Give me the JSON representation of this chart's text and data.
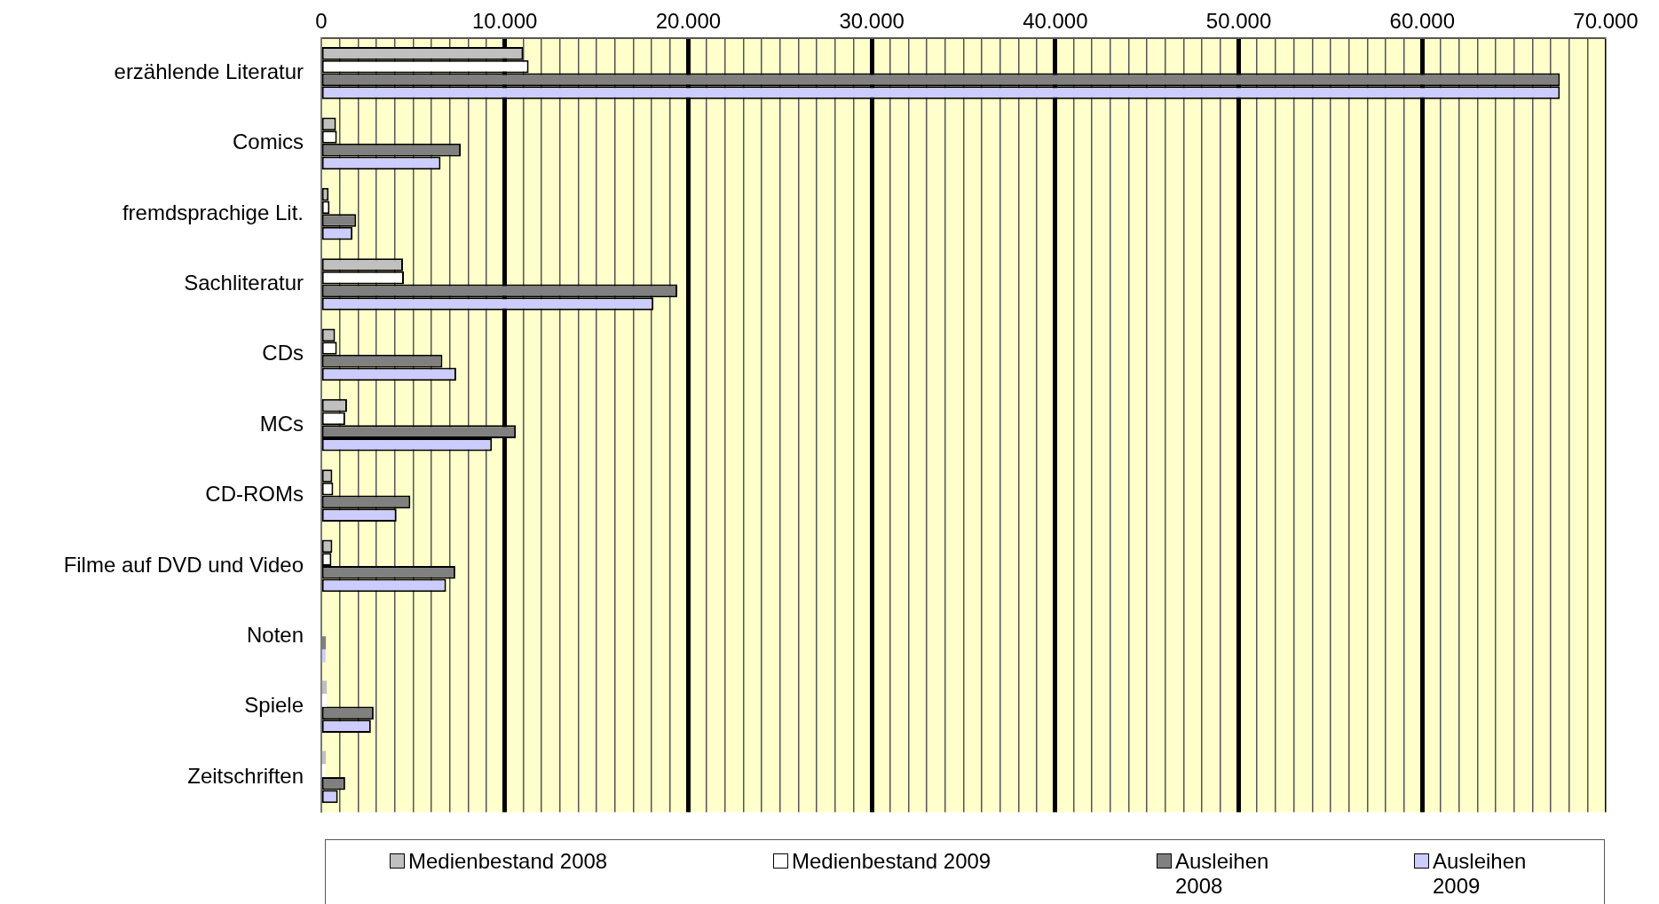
{
  "chart_data": {
    "type": "bar",
    "orientation": "horizontal",
    "categories": [
      "erzählende Literatur",
      "Comics",
      "fremdsprachige Lit.",
      "Sachliteratur",
      "CDs",
      "MCs",
      "CD-ROMs",
      "Filme auf DVD und Video",
      "Noten",
      "Spiele",
      "Zeitschriften"
    ],
    "series": [
      {
        "name": "Medienbestand 2008",
        "color": "#c0c0c0",
        "values": [
          11000,
          800,
          400,
          4450,
          750,
          1400,
          600,
          600,
          null,
          300,
          250
        ]
      },
      {
        "name": "Medienbestand 2009",
        "color": "#ffffff",
        "values": [
          11300,
          850,
          450,
          4500,
          850,
          1300,
          650,
          550,
          null,
          300,
          200
        ]
      },
      {
        "name": "Ausleihen 2008",
        "color": "#808080",
        "values": [
          67500,
          7600,
          1900,
          19400,
          6600,
          10600,
          4850,
          7300,
          250,
          2850,
          1300
        ]
      },
      {
        "name": "Ausleihen 2009",
        "color": "#ccccff",
        "values": [
          67500,
          6500,
          1700,
          18100,
          7350,
          9300,
          4100,
          6800,
          230,
          2700,
          900
        ]
      }
    ],
    "xlim": [
      0,
      70000
    ],
    "xticks": [
      0,
      {
        "value": 1000,
        "label": null
      },
      {
        "value": 2000,
        "label": null
      },
      {
        "value": 3000,
        "label": null
      },
      {
        "value": 4000,
        "label": null
      },
      {
        "value": 5000,
        "label": null
      },
      {
        "value": 6000,
        "label": null
      },
      {
        "value": 7000,
        "label": null
      },
      {
        "value": 8000,
        "label": null
      },
      {
        "value": 9000,
        "label": null
      },
      {
        "value": 10000,
        "label": "10.000"
      },
      {
        "value": 11000,
        "label": null
      },
      {
        "value": 12000,
        "label": null
      },
      {
        "value": 13000,
        "label": null
      },
      {
        "value": 14000,
        "label": null
      },
      {
        "value": 15000,
        "label": null
      },
      {
        "value": 16000,
        "label": null
      },
      {
        "value": 17000,
        "label": null
      },
      {
        "value": 18000,
        "label": null
      },
      {
        "value": 19000,
        "label": null
      },
      {
        "value": 20000,
        "label": "20.000"
      },
      {
        "value": 21000,
        "label": null
      },
      {
        "value": 22000,
        "label": null
      },
      {
        "value": 23000,
        "label": null
      },
      {
        "value": 24000,
        "label": null
      },
      {
        "value": 25000,
        "label": null
      },
      {
        "value": 26000,
        "label": null
      },
      {
        "value": 27000,
        "label": null
      },
      {
        "value": 28000,
        "label": null
      },
      {
        "value": 29000,
        "label": null
      },
      {
        "value": 30000,
        "label": "30.000"
      },
      {
        "value": 31000,
        "label": null
      },
      {
        "value": 32000,
        "label": null
      },
      {
        "value": 33000,
        "label": null
      },
      {
        "value": 34000,
        "label": null
      },
      {
        "value": 35000,
        "label": null
      },
      {
        "value": 36000,
        "label": null
      },
      {
        "value": 37000,
        "label": null
      },
      {
        "value": 38000,
        "label": null
      },
      {
        "value": 39000,
        "label": null
      },
      {
        "value": 40000,
        "label": "40.000"
      },
      {
        "value": 41000,
        "label": null
      },
      {
        "value": 42000,
        "label": null
      },
      {
        "value": 43000,
        "label": null
      },
      {
        "value": 44000,
        "label": null
      },
      {
        "value": 45000,
        "label": null
      },
      {
        "value": 46000,
        "label": null
      },
      {
        "value": 47000,
        "label": null
      },
      {
        "value": 48000,
        "label": null
      },
      {
        "value": 49000,
        "label": null
      },
      {
        "value": 50000,
        "label": "50.000"
      },
      {
        "value": 51000,
        "label": null
      },
      {
        "value": 52000,
        "label": null
      },
      {
        "value": 53000,
        "label": null
      },
      {
        "value": 54000,
        "label": null
      },
      {
        "value": 55000,
        "label": null
      },
      {
        "value": 56000,
        "label": null
      },
      {
        "value": 57000,
        "label": null
      },
      {
        "value": 58000,
        "label": null
      },
      {
        "value": 59000,
        "label": null
      },
      {
        "value": 60000,
        "label": "60.000"
      },
      {
        "value": 61000,
        "label": null
      },
      {
        "value": 62000,
        "label": null
      },
      {
        "value": 63000,
        "label": null
      },
      {
        "value": 64000,
        "label": null
      },
      {
        "value": 65000,
        "label": null
      },
      {
        "value": 66000,
        "label": null
      },
      {
        "value": 67000,
        "label": null
      },
      {
        "value": 68000,
        "label": null
      },
      {
        "value": 69000,
        "label": null
      },
      {
        "value": 70000,
        "label": "70.000"
      }
    ],
    "grid": "x",
    "legend": "bottom"
  }
}
